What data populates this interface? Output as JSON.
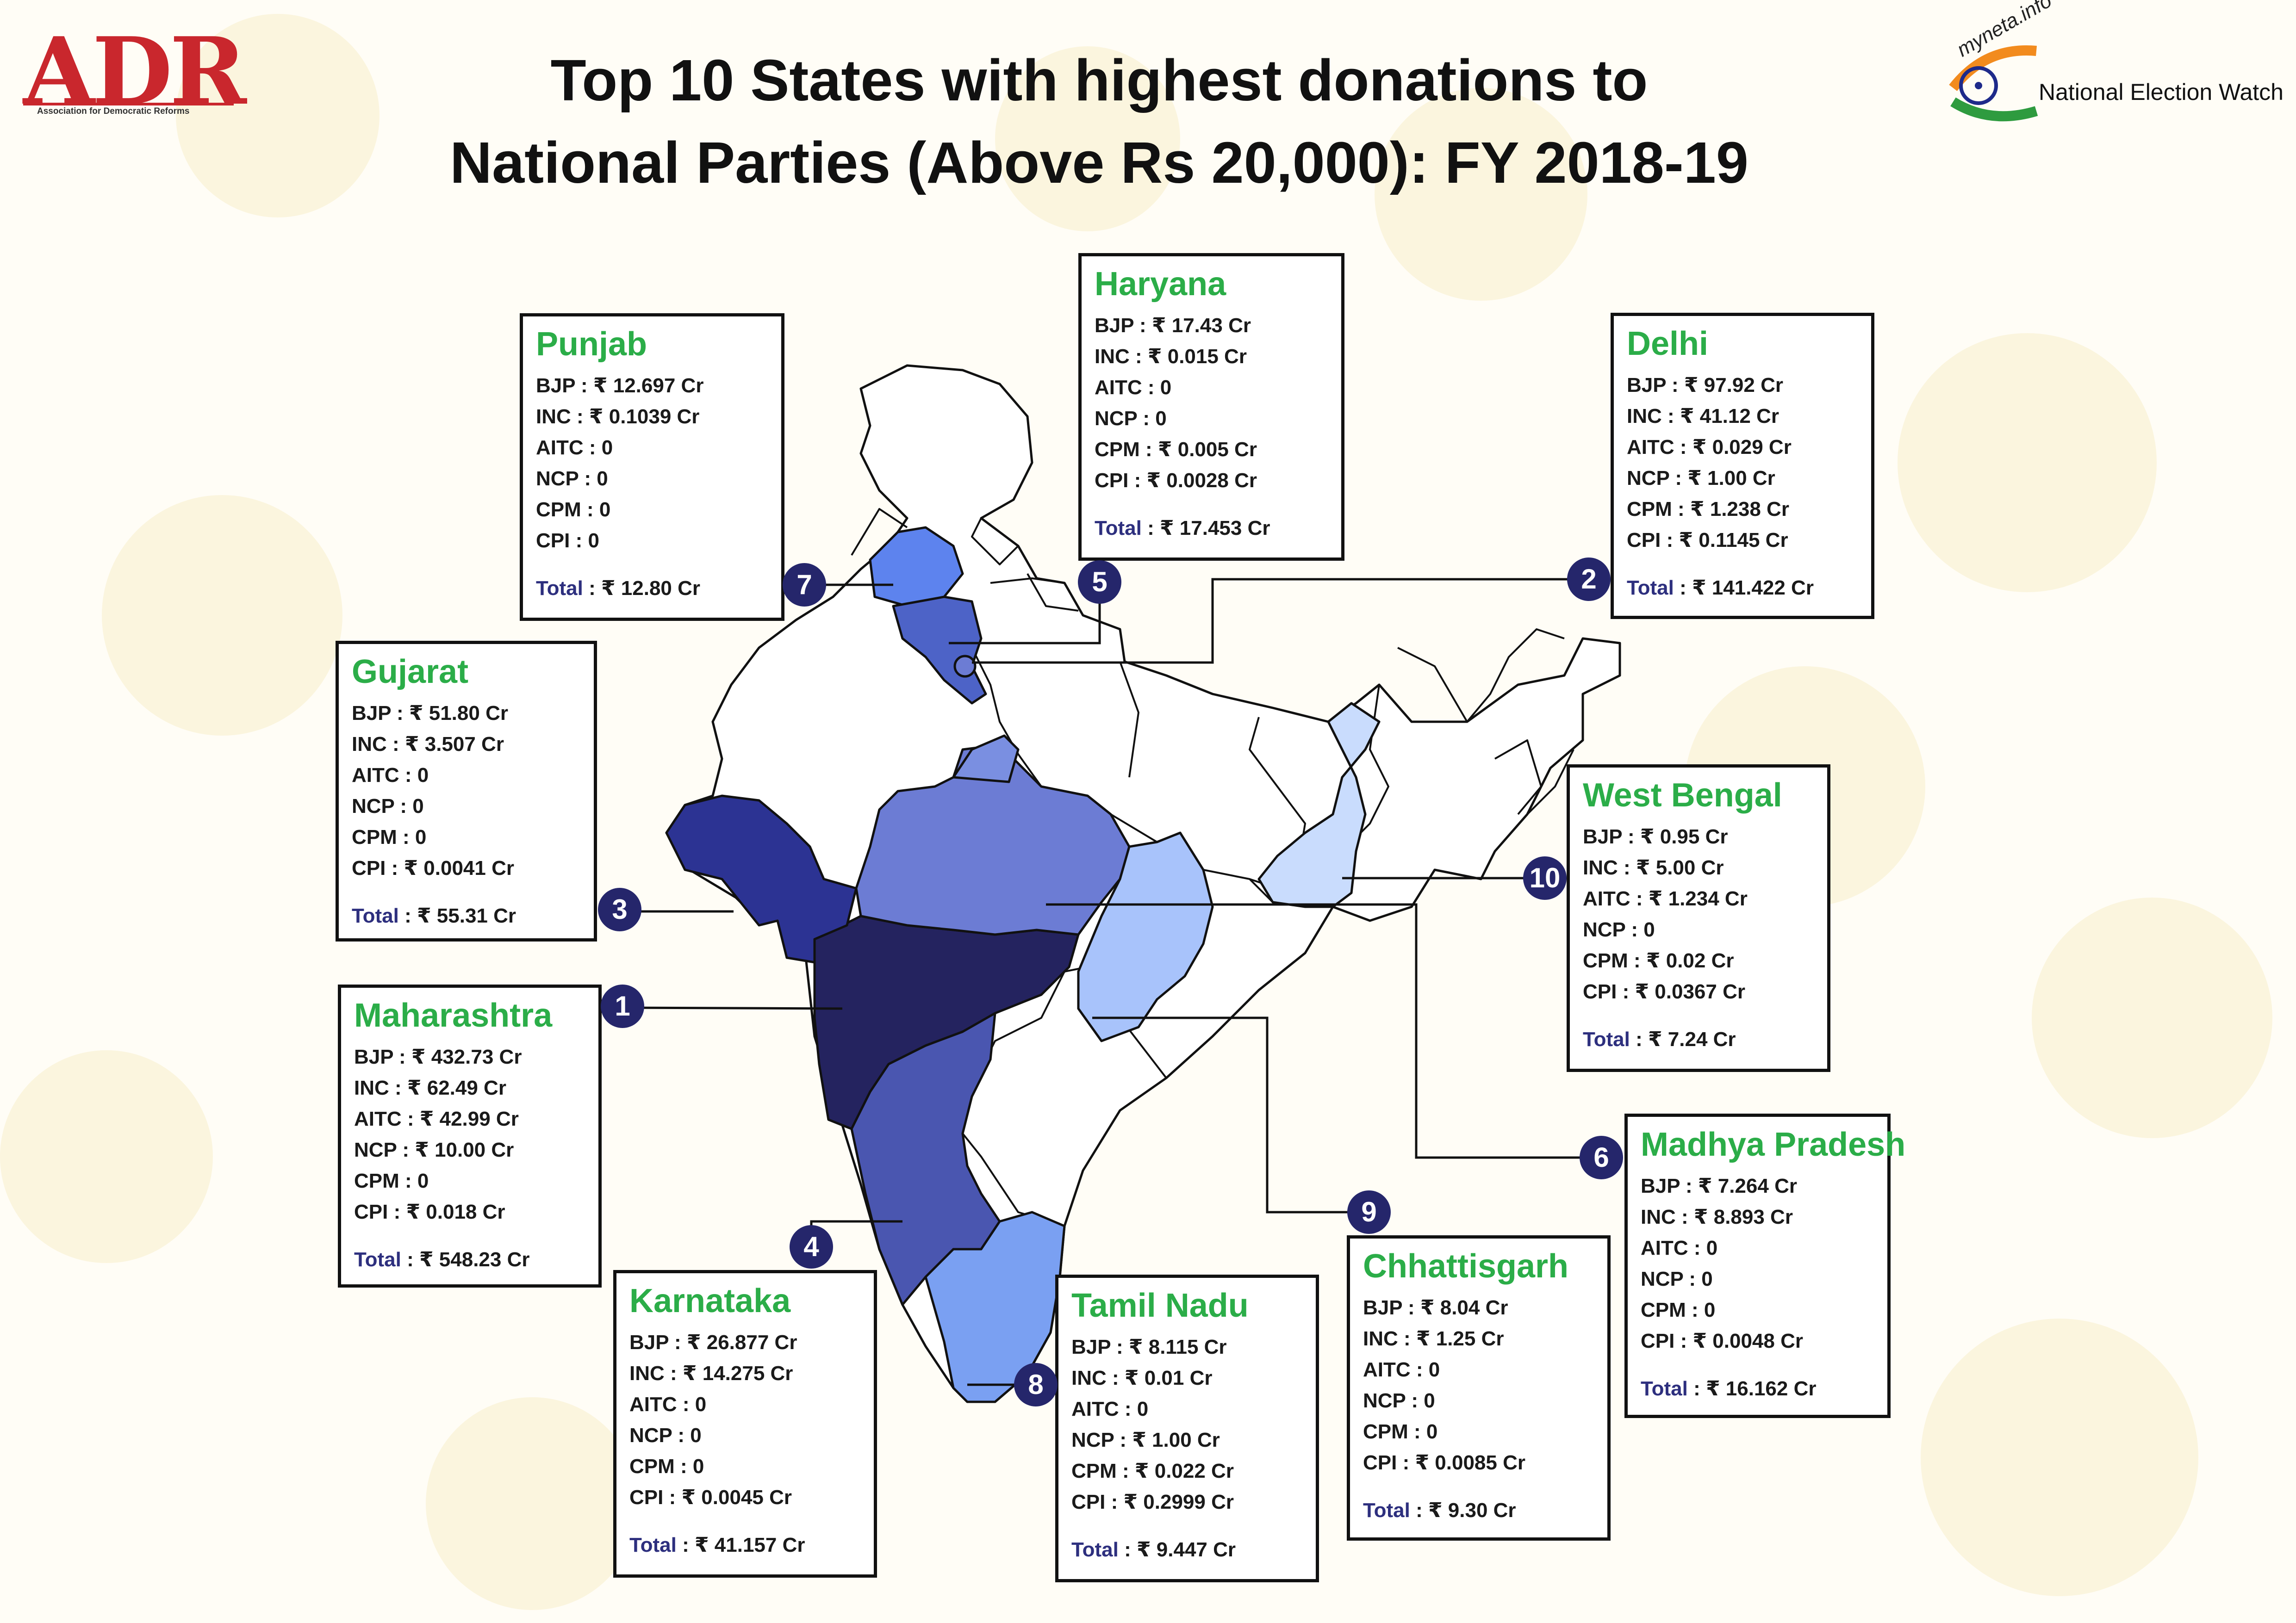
{
  "title": {
    "line1": "Top 10 States with highest donations to",
    "line2": "National Parties (Above Rs 20,000): FY 2018-19"
  },
  "logos": {
    "left": {
      "text": "ADR",
      "subtitle": "Association for Democratic Reforms",
      "color": "#c9272d"
    },
    "right": {
      "text": "National Election Watch",
      "small_text": "myneta.info"
    }
  },
  "colors": {
    "rank_circle": "#25266b",
    "state_name": "#2bad48",
    "total_label": "#2d2f7e",
    "shade_rank_1": "#24235f",
    "shade_rank_2": "#6c7cd4",
    "shade_rank_3": "#2c3393",
    "shade_rank_4": "#4a56b0",
    "shade_rank_5": "#4d63c7",
    "shade_rank_6": "#7a8fe1",
    "shade_rank_7": "#5d83ee",
    "shade_rank_8": "#7aa0f2",
    "shade_rank_9": "#a8c3fb",
    "shade_rank_10": "#c9dcfd"
  },
  "states": [
    {
      "rank": "1",
      "name": "Maharashtra",
      "rows": [
        "BJP : ₹ 432.73 Cr",
        "INC : ₹ 62.49 Cr",
        "AITC : ₹ 42.99 Cr",
        "NCP : ₹ 10.00 Cr",
        "CPM : 0",
        "CPI : ₹ 0.018 Cr"
      ],
      "total_label": "Total",
      "total_value": " : ₹ 548.23 Cr"
    },
    {
      "rank": "2",
      "name": "Delhi",
      "rows": [
        "BJP : ₹ 97.92 Cr",
        "INC : ₹ 41.12 Cr",
        "AITC : ₹ 0.029 Cr",
        "NCP : ₹ 1.00 Cr",
        "CPM : ₹ 1.238 Cr",
        "CPI : ₹ 0.1145 Cr"
      ],
      "total_label": "Total",
      "total_value": " : ₹ 141.422 Cr"
    },
    {
      "rank": "3",
      "name": "Gujarat",
      "rows": [
        "BJP : ₹ 51.80 Cr",
        "INC : ₹ 3.507 Cr",
        "AITC : 0",
        "NCP : 0",
        "CPM : 0",
        "CPI : ₹ 0.0041 Cr"
      ],
      "total_label": "Total",
      "total_value": " : ₹ 55.31 Cr"
    },
    {
      "rank": "4",
      "name": "Karnataka",
      "rows": [
        "BJP : ₹ 26.877 Cr",
        "INC : ₹ 14.275 Cr",
        "AITC : 0",
        "NCP : 0",
        "CPM : 0",
        "CPI : ₹ 0.0045 Cr"
      ],
      "total_label": "Total",
      "total_value": " : ₹ 41.157 Cr"
    },
    {
      "rank": "5",
      "name": "Haryana",
      "rows": [
        "BJP : ₹ 17.43 Cr",
        "INC : ₹ 0.015 Cr",
        "AITC : 0",
        "NCP : 0",
        "CPM : ₹ 0.005 Cr",
        "CPI : ₹ 0.0028 Cr"
      ],
      "total_label": "Total",
      "total_value": " : ₹ 17.453 Cr"
    },
    {
      "rank": "6",
      "name": "Madhya Pradesh",
      "rows": [
        "BJP : ₹ 7.264 Cr",
        "INC : ₹ 8.893 Cr",
        "AITC : 0",
        "NCP : 0",
        "CPM : 0",
        "CPI : ₹ 0.0048 Cr"
      ],
      "total_label": "Total",
      "total_value": " : ₹ 16.162 Cr"
    },
    {
      "rank": "7",
      "name": "Punjab",
      "rows": [
        "BJP : ₹ 12.697 Cr",
        "INC : ₹ 0.1039 Cr",
        "AITC : 0",
        "NCP : 0",
        "CPM : 0",
        "CPI : 0"
      ],
      "total_label": "Total",
      "total_value": " : ₹ 12.80 Cr"
    },
    {
      "rank": "8",
      "name": "Tamil Nadu",
      "rows": [
        "BJP : ₹ 8.115 Cr",
        "INC : ₹ 0.01 Cr",
        "AITC : 0",
        "NCP : ₹ 1.00 Cr",
        "CPM : ₹ 0.022 Cr",
        "CPI : ₹ 0.2999 Cr"
      ],
      "total_label": "Total",
      "total_value": " : ₹ 9.447 Cr"
    },
    {
      "rank": "9",
      "name": "Chhattisgarh",
      "rows": [
        "BJP : ₹ 8.04 Cr",
        "INC : ₹ 1.25 Cr",
        "AITC : 0",
        "NCP : 0",
        "CPM : 0",
        "CPI : ₹ 0.0085 Cr"
      ],
      "total_label": "Total",
      "total_value": " : ₹ 9.30 Cr"
    },
    {
      "rank": "10",
      "name": "West Bengal",
      "rows": [
        "BJP : ₹ 0.95 Cr",
        "INC : ₹ 5.00 Cr",
        "AITC : ₹ 1.234 Cr",
        "NCP : 0",
        "CPM : ₹ 0.02 Cr",
        "CPI : ₹ 0.0367 Cr"
      ],
      "total_label": "Total",
      "total_value": " : ₹ 7.24 Cr"
    }
  ]
}
